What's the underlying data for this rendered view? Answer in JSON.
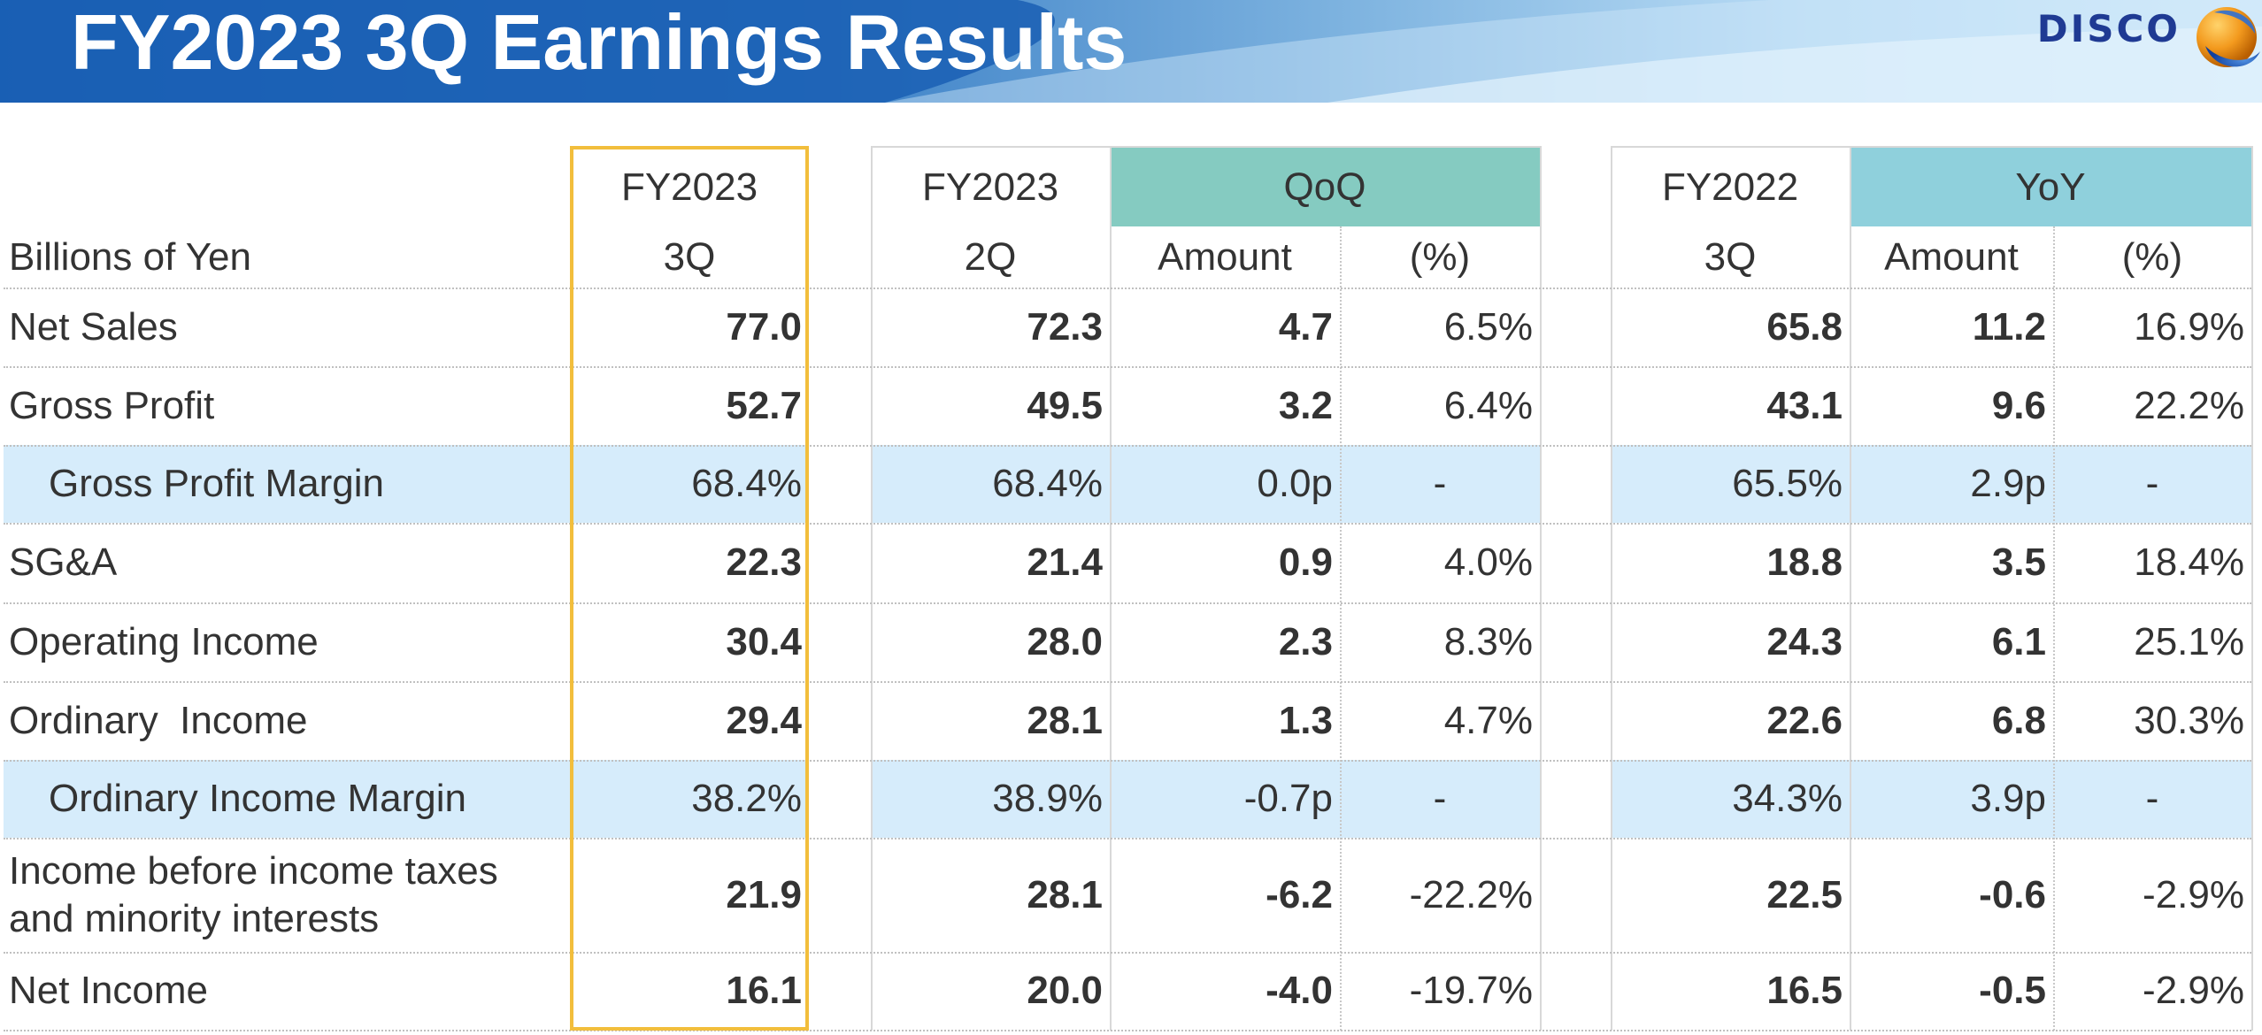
{
  "header": {
    "title": "FY2023 3Q Earnings Results",
    "logo_text": "DISCO",
    "colors": {
      "bar_start": "#1a5fb4",
      "bar_end": "#d4ecfb",
      "logo_text": "#1f3a93"
    }
  },
  "table": {
    "unit_label": "Billions of Yen",
    "headers": {
      "current": {
        "year": "FY2023",
        "quarter": "3Q"
      },
      "prev_q": {
        "year": "FY2023",
        "quarter": "2Q"
      },
      "qoq": {
        "label": "QoQ",
        "amount": "Amount",
        "pct": "(%)"
      },
      "prev_y": {
        "year": "FY2022",
        "quarter": "3Q"
      },
      "yoy": {
        "label": "YoY",
        "amount": "Amount",
        "pct": "(%)"
      }
    },
    "rows": [
      {
        "label": "Net Sales",
        "cur": "77.0",
        "q2": "72.3",
        "qoq_amt": "4.7",
        "qoq_pct": "6.5%",
        "py": "65.8",
        "yoy_amt": "11.2",
        "yoy_pct": "16.9%"
      },
      {
        "label": "Gross Profit",
        "cur": "52.7",
        "q2": "49.5",
        "qoq_amt": "3.2",
        "qoq_pct": "6.4%",
        "py": "43.1",
        "yoy_amt": "9.6",
        "yoy_pct": "22.2%"
      },
      {
        "label": "Gross Profit Margin",
        "cur": "68.4%",
        "q2": "68.4%",
        "qoq_amt": "0.0p",
        "qoq_pct": "-",
        "py": "65.5%",
        "yoy_amt": "2.9p",
        "yoy_pct": "-"
      },
      {
        "label": "SG&A",
        "cur": "22.3",
        "q2": "21.4",
        "qoq_amt": "0.9",
        "qoq_pct": "4.0%",
        "py": "18.8",
        "yoy_amt": "3.5",
        "yoy_pct": "18.4%"
      },
      {
        "label": "Operating Income",
        "cur": "30.4",
        "q2": "28.0",
        "qoq_amt": "2.3",
        "qoq_pct": "8.3%",
        "py": "24.3",
        "yoy_amt": "6.1",
        "yoy_pct": "25.1%"
      },
      {
        "label": "Ordinary  Income",
        "cur": "29.4",
        "q2": "28.1",
        "qoq_amt": "1.3",
        "qoq_pct": "4.7%",
        "py": "22.6",
        "yoy_amt": "6.8",
        "yoy_pct": "30.3%"
      },
      {
        "label": "Ordinary Income Margin",
        "cur": "38.2%",
        "q2": "38.9%",
        "qoq_amt": "-0.7p",
        "qoq_pct": "-",
        "py": "34.3%",
        "yoy_amt": "3.9p",
        "yoy_pct": "-"
      },
      {
        "label": "Income before income taxes and minority interests",
        "cur": "21.9",
        "q2": "28.1",
        "qoq_amt": "-6.2",
        "qoq_pct": "-22.2%",
        "py": "22.5",
        "yoy_amt": "-0.6",
        "yoy_pct": "-2.9%"
      },
      {
        "label": "Net Income",
        "cur": "16.1",
        "q2": "20.0",
        "qoq_amt": "-4.0",
        "qoq_pct": "-19.7%",
        "py": "16.5",
        "yoy_amt": "-0.5",
        "yoy_pct": "-2.9%"
      }
    ],
    "colors": {
      "qoq_header": "#85cbc1",
      "yoy_header": "#8fd0dc",
      "margin_row": "#d6ecfb",
      "current_frame": "#f2be3c"
    }
  }
}
